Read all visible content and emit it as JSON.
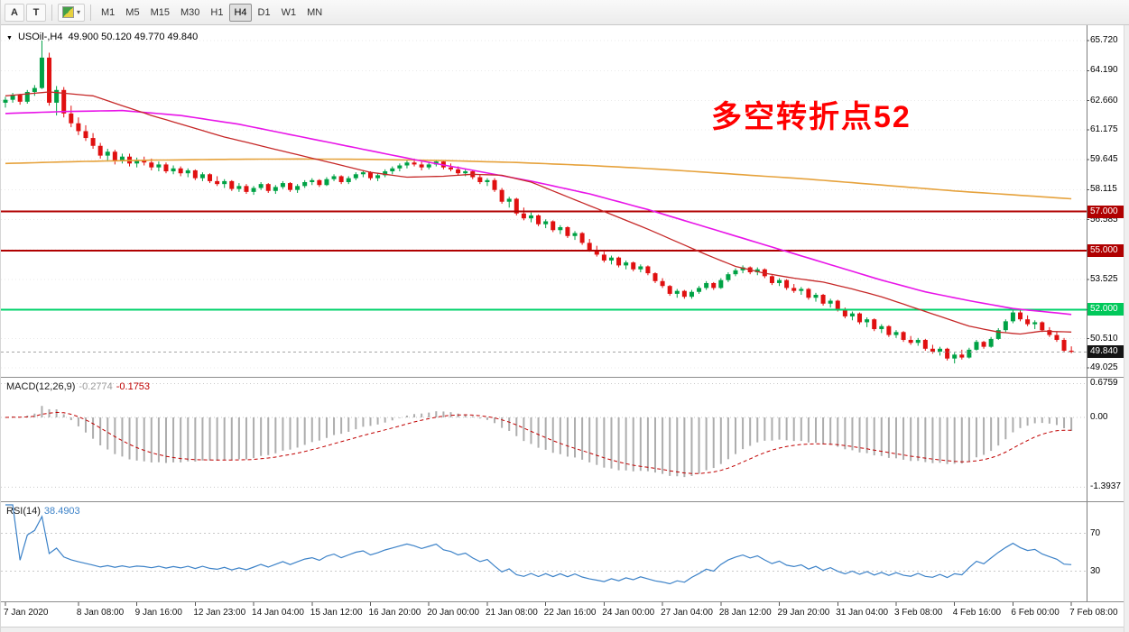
{
  "toolbar": {
    "tools": [
      {
        "label": "A"
      },
      {
        "label": "T"
      }
    ],
    "timeframes": [
      {
        "label": "M1"
      },
      {
        "label": "M5"
      },
      {
        "label": "M15"
      },
      {
        "label": "M30"
      },
      {
        "label": "H1"
      },
      {
        "label": "H4",
        "active": true
      },
      {
        "label": "D1"
      },
      {
        "label": "W1"
      },
      {
        "label": "MN"
      }
    ]
  },
  "chart": {
    "symbol_label": "USOil-,H4",
    "ohlc_text": "49.900 50.120 49.770 49.840",
    "annotation": {
      "text": "多空转折点52",
      "color": "#FF0000"
    }
  },
  "macd": {
    "label": "MACD(12,26,9)",
    "value_main": "-0.2774",
    "value_signal": "-0.1753"
  },
  "rsi": {
    "label": "RSI(14)",
    "value": "38.4903"
  },
  "chart_data": {
    "type": "candlestick",
    "symbol": "USOil-",
    "timeframe": "H4",
    "ylim": [
      49.025,
      65.72
    ],
    "colors": {
      "up": "#00A245",
      "down": "#E01010",
      "ma_fast": "#C62828",
      "ma_mid": "#E814E8",
      "ma_slow": "#E6A23C",
      "macd_hist": "#ADADAD",
      "macd_signal": "#C00000",
      "rsi_line": "#3C82C8",
      "grid": "#E9E9E9",
      "levels": "#C9C9C9",
      "axis_line": "#7D7D7D",
      "current": "#A5A5A5"
    },
    "candles": [
      [
        62.55,
        62.85,
        62.3,
        62.7
      ],
      [
        62.7,
        63.05,
        62.55,
        62.95
      ],
      [
        62.95,
        63,
        62.45,
        62.6
      ],
      [
        62.6,
        63.2,
        62.5,
        63.1
      ],
      [
        63.1,
        63.45,
        62.9,
        63.3
      ],
      [
        63.3,
        65.72,
        63.25,
        64.85
      ],
      [
        64.85,
        65.1,
        62.4,
        62.55
      ],
      [
        62.55,
        63.4,
        61.9,
        63.2
      ],
      [
        63.2,
        63.35,
        61.8,
        62
      ],
      [
        62,
        62.4,
        61.3,
        61.5
      ],
      [
        61.5,
        61.8,
        60.9,
        61.1
      ],
      [
        61.1,
        61.4,
        60.6,
        60.75
      ],
      [
        60.75,
        61,
        60.2,
        60.35
      ],
      [
        60.35,
        60.5,
        59.7,
        59.85
      ],
      [
        59.85,
        60.2,
        59.55,
        60.05
      ],
      [
        60.05,
        60.15,
        59.4,
        59.6
      ],
      [
        59.6,
        59.95,
        59.45,
        59.8
      ],
      [
        59.8,
        59.95,
        59.3,
        59.45
      ],
      [
        59.45,
        59.75,
        59.25,
        59.6
      ],
      [
        59.6,
        59.8,
        59.35,
        59.5
      ],
      [
        59.5,
        59.7,
        59.1,
        59.25
      ],
      [
        59.25,
        59.55,
        59.05,
        59.4
      ],
      [
        59.4,
        59.5,
        58.95,
        59.05
      ],
      [
        59.05,
        59.35,
        58.9,
        59.2
      ],
      [
        59.2,
        59.3,
        58.8,
        58.95
      ],
      [
        58.95,
        59.2,
        58.75,
        59.1
      ],
      [
        59.1,
        59.15,
        58.6,
        58.7
      ],
      [
        58.7,
        59,
        58.55,
        58.9
      ],
      [
        58.9,
        58.95,
        58.45,
        58.55
      ],
      [
        58.55,
        58.8,
        58.3,
        58.4
      ],
      [
        58.4,
        58.65,
        58.2,
        58.55
      ],
      [
        58.55,
        58.6,
        58.05,
        58.15
      ],
      [
        58.15,
        58.45,
        58,
        58.3
      ],
      [
        58.3,
        58.4,
        57.9,
        58
      ],
      [
        58,
        58.3,
        57.85,
        58.2
      ],
      [
        58.2,
        58.5,
        58.1,
        58.4
      ],
      [
        58.4,
        58.45,
        57.95,
        58.05
      ],
      [
        58.05,
        58.35,
        57.9,
        58.25
      ],
      [
        58.25,
        58.55,
        58.15,
        58.45
      ],
      [
        58.45,
        58.5,
        58,
        58.1
      ],
      [
        58.1,
        58.4,
        57.95,
        58.3
      ],
      [
        58.3,
        58.6,
        58.2,
        58.5
      ],
      [
        58.5,
        58.7,
        58.35,
        58.6
      ],
      [
        58.6,
        58.65,
        58.25,
        58.35
      ],
      [
        58.35,
        58.75,
        58.3,
        58.65
      ],
      [
        58.65,
        58.9,
        58.55,
        58.8
      ],
      [
        58.8,
        58.85,
        58.4,
        58.5
      ],
      [
        58.5,
        58.8,
        58.4,
        58.7
      ],
      [
        58.7,
        59,
        58.6,
        58.9
      ],
      [
        58.9,
        59.1,
        58.75,
        59
      ],
      [
        59,
        59.05,
        58.6,
        58.7
      ],
      [
        58.7,
        58.95,
        58.55,
        58.85
      ],
      [
        58.85,
        59.15,
        58.75,
        59.05
      ],
      [
        59.05,
        59.3,
        58.9,
        59.2
      ],
      [
        59.2,
        59.45,
        59.05,
        59.35
      ],
      [
        59.35,
        59.6,
        59.2,
        59.5
      ],
      [
        59.5,
        59.7,
        59.3,
        59.4
      ],
      [
        59.4,
        59.55,
        59.1,
        59.25
      ],
      [
        59.25,
        59.5,
        59.15,
        59.4
      ],
      [
        59.4,
        59.65,
        59.3,
        59.55
      ],
      [
        59.55,
        59.6,
        59.15,
        59.25
      ],
      [
        59.25,
        59.45,
        59.05,
        59.15
      ],
      [
        59.15,
        59.3,
        58.85,
        58.95
      ],
      [
        58.95,
        59.15,
        58.8,
        59.05
      ],
      [
        59.05,
        59.1,
        58.65,
        58.75
      ],
      [
        58.75,
        58.9,
        58.4,
        58.5
      ],
      [
        58.5,
        58.7,
        58.3,
        58.6
      ],
      [
        58.6,
        58.7,
        58,
        58.1
      ],
      [
        58.1,
        58.2,
        57.4,
        57.5
      ],
      [
        57.5,
        57.75,
        57.2,
        57.65
      ],
      [
        57.65,
        57.7,
        56.8,
        56.9
      ],
      [
        56.9,
        57.2,
        56.55,
        56.65
      ],
      [
        56.65,
        56.95,
        56.45,
        56.8
      ],
      [
        56.8,
        56.85,
        56.25,
        56.35
      ],
      [
        56.35,
        56.6,
        56.15,
        56.5
      ],
      [
        56.5,
        56.55,
        55.95,
        56.05
      ],
      [
        56.05,
        56.3,
        55.85,
        56.2
      ],
      [
        56.2,
        56.25,
        55.65,
        55.75
      ],
      [
        55.75,
        56,
        55.55,
        55.9
      ],
      [
        55.9,
        55.95,
        55.3,
        55.4
      ],
      [
        55.4,
        55.6,
        54.95,
        55.05
      ],
      [
        55.05,
        55.25,
        54.7,
        54.8
      ],
      [
        54.8,
        54.95,
        54.4,
        54.5
      ],
      [
        54.5,
        54.75,
        54.3,
        54.65
      ],
      [
        54.65,
        54.7,
        54.15,
        54.25
      ],
      [
        54.25,
        54.5,
        54.05,
        54.4
      ],
      [
        54.4,
        54.45,
        53.95,
        54.05
      ],
      [
        54.05,
        54.3,
        53.9,
        54.2
      ],
      [
        54.2,
        54.25,
        53.75,
        53.85
      ],
      [
        53.85,
        53.9,
        53.35,
        53.45
      ],
      [
        53.45,
        53.6,
        53.1,
        53.2
      ],
      [
        53.2,
        53.25,
        52.7,
        52.8
      ],
      [
        52.8,
        53.05,
        52.6,
        52.95
      ],
      [
        52.95,
        53,
        52.55,
        52.65
      ],
      [
        52.65,
        53,
        52.55,
        52.9
      ],
      [
        52.9,
        53.2,
        52.8,
        53.1
      ],
      [
        53.1,
        53.45,
        53,
        53.35
      ],
      [
        53.35,
        53.4,
        53,
        53.1
      ],
      [
        53.1,
        53.6,
        53.05,
        53.5
      ],
      [
        53.5,
        53.9,
        53.4,
        53.8
      ],
      [
        53.8,
        54.1,
        53.7,
        54
      ],
      [
        54,
        54.25,
        53.85,
        54.15
      ],
      [
        54.15,
        54.2,
        53.8,
        53.9
      ],
      [
        53.9,
        54.15,
        53.75,
        54.05
      ],
      [
        54.05,
        54.1,
        53.6,
        53.7
      ],
      [
        53.7,
        53.75,
        53.25,
        53.35
      ],
      [
        53.35,
        53.6,
        53.2,
        53.5
      ],
      [
        53.5,
        53.55,
        53,
        53.1
      ],
      [
        53.1,
        53.3,
        52.85,
        52.95
      ],
      [
        52.95,
        53.15,
        52.75,
        53.05
      ],
      [
        53.05,
        53.1,
        52.5,
        52.6
      ],
      [
        52.6,
        52.85,
        52.4,
        52.75
      ],
      [
        52.75,
        52.8,
        52.2,
        52.3
      ],
      [
        52.3,
        52.55,
        52.1,
        52.45
      ],
      [
        52.45,
        52.5,
        51.9,
        52
      ],
      [
        52,
        52.1,
        51.55,
        51.65
      ],
      [
        51.65,
        51.9,
        51.45,
        51.8
      ],
      [
        51.8,
        51.85,
        51.25,
        51.35
      ],
      [
        51.35,
        51.6,
        51.1,
        51.5
      ],
      [
        51.5,
        51.55,
        50.9,
        51
      ],
      [
        51,
        51.25,
        50.8,
        51.15
      ],
      [
        51.15,
        51.2,
        50.6,
        50.7
      ],
      [
        50.7,
        50.95,
        50.55,
        50.85
      ],
      [
        50.85,
        50.9,
        50.35,
        50.45
      ],
      [
        50.45,
        50.65,
        50.2,
        50.3
      ],
      [
        50.3,
        50.55,
        50.15,
        50.45
      ],
      [
        50.45,
        50.5,
        49.9,
        50
      ],
      [
        50,
        50.2,
        49.75,
        49.85
      ],
      [
        49.85,
        50.1,
        49.65,
        50
      ],
      [
        50,
        50.05,
        49.4,
        49.5
      ],
      [
        49.5,
        49.8,
        49.25,
        49.7
      ],
      [
        49.7,
        49.95,
        49.45,
        49.55
      ],
      [
        49.55,
        50.05,
        49.5,
        49.95
      ],
      [
        49.95,
        50.45,
        49.9,
        50.35
      ],
      [
        50.35,
        50.4,
        50,
        50.1
      ],
      [
        50.1,
        50.6,
        50.05,
        50.5
      ],
      [
        50.5,
        51.05,
        50.45,
        50.95
      ],
      [
        50.95,
        51.5,
        50.85,
        51.4
      ],
      [
        51.4,
        51.95,
        51.3,
        51.85
      ],
      [
        51.85,
        52,
        51.4,
        51.5
      ],
      [
        51.5,
        51.7,
        51.15,
        51.25
      ],
      [
        51.25,
        51.45,
        51,
        51.35
      ],
      [
        51.35,
        51.4,
        50.85,
        50.95
      ],
      [
        50.95,
        51.1,
        50.6,
        50.7
      ],
      [
        50.7,
        50.85,
        50.35,
        50.45
      ],
      [
        50.45,
        50.55,
        49.85,
        49.9
      ],
      [
        49.9,
        50.12,
        49.77,
        49.84
      ]
    ],
    "ma_fast_points": [
      [
        0,
        62.9
      ],
      [
        6,
        63.1
      ],
      [
        12,
        62.9
      ],
      [
        20,
        61.9
      ],
      [
        30,
        60.8
      ],
      [
        40,
        59.9
      ],
      [
        50,
        59.0
      ],
      [
        55,
        58.75
      ],
      [
        60,
        58.8
      ],
      [
        64,
        58.9
      ],
      [
        68,
        58.85
      ],
      [
        72,
        58.5
      ],
      [
        76,
        57.9
      ],
      [
        80,
        57.3
      ],
      [
        84,
        56.7
      ],
      [
        88,
        56.1
      ],
      [
        92,
        55.45
      ],
      [
        96,
        54.8
      ],
      [
        100,
        54.2
      ],
      [
        104,
        53.85
      ],
      [
        108,
        53.6
      ],
      [
        112,
        53.4
      ],
      [
        116,
        53.05
      ],
      [
        120,
        52.65
      ],
      [
        124,
        52.15
      ],
      [
        128,
        51.65
      ],
      [
        132,
        51.15
      ],
      [
        136,
        50.85
      ],
      [
        139,
        50.75
      ],
      [
        142,
        50.9
      ],
      [
        146,
        50.85
      ]
    ],
    "ma_mid_points": [
      [
        0,
        62.0
      ],
      [
        8,
        62.1
      ],
      [
        16,
        62.15
      ],
      [
        24,
        61.9
      ],
      [
        32,
        61.45
      ],
      [
        40,
        60.85
      ],
      [
        48,
        60.25
      ],
      [
        56,
        59.65
      ],
      [
        64,
        59.1
      ],
      [
        72,
        58.55
      ],
      [
        80,
        57.9
      ],
      [
        88,
        57.1
      ],
      [
        96,
        56.2
      ],
      [
        104,
        55.3
      ],
      [
        112,
        54.4
      ],
      [
        120,
        53.5
      ],
      [
        126,
        52.9
      ],
      [
        132,
        52.45
      ],
      [
        138,
        52.05
      ],
      [
        142,
        51.9
      ],
      [
        146,
        51.75
      ]
    ],
    "ma_slow_points": [
      [
        0,
        59.45
      ],
      [
        10,
        59.55
      ],
      [
        20,
        59.62
      ],
      [
        30,
        59.66
      ],
      [
        40,
        59.68
      ],
      [
        50,
        59.66
      ],
      [
        60,
        59.6
      ],
      [
        70,
        59.5
      ],
      [
        80,
        59.35
      ],
      [
        90,
        59.15
      ],
      [
        100,
        58.9
      ],
      [
        110,
        58.65
      ],
      [
        120,
        58.35
      ],
      [
        130,
        58.05
      ],
      [
        138,
        57.85
      ],
      [
        146,
        57.65
      ]
    ],
    "hlines": [
      {
        "price": 57.0,
        "color": "#B00000"
      },
      {
        "price": 55.0,
        "color": "#B00000"
      },
      {
        "price": 52.0,
        "color": "#00D26A"
      }
    ],
    "current_price": 49.84,
    "price_ticks": [
      {
        "label": "65.720",
        "value": 65.72
      },
      {
        "label": "64.190",
        "value": 64.19
      },
      {
        "label": "62.660",
        "value": 62.66
      },
      {
        "label": "61.175",
        "value": 61.175
      },
      {
        "label": "59.645",
        "value": 59.645
      },
      {
        "label": "58.115",
        "value": 58.115
      },
      {
        "label": "56.585",
        "value": 56.585
      },
      {
        "label": "55.055",
        "value": 55.055
      },
      {
        "label": "53.525",
        "value": 53.525
      },
      {
        "label": "51.995",
        "value": 51.995
      },
      {
        "label": "50.510",
        "value": 50.51
      },
      {
        "label": "49.025",
        "value": 49.025
      }
    ],
    "badges": [
      {
        "label": "57.000",
        "price": 57.0,
        "bg": "#B00000",
        "fg": "#FFFFFF"
      },
      {
        "label": "55.000",
        "price": 55.0,
        "bg": "#B00000",
        "fg": "#FFFFFF"
      },
      {
        "label": "52.000",
        "price": 52.0,
        "bg": "#00C85A",
        "fg": "#FFFFFF"
      },
      {
        "label": "49.840",
        "price": 49.84,
        "bg": "#141414",
        "fg": "#FFFFFF"
      }
    ],
    "macd": {
      "fast": 12,
      "slow": 26,
      "signal": 9,
      "axis": [
        {
          "label": "0.6759",
          "value": 0.6759
        },
        {
          "label": "0.00",
          "value": 0
        },
        {
          "label": "-1.3937",
          "value": -1.3937
        }
      ]
    },
    "rsi": {
      "period": 14,
      "levels": [
        {
          "label": "70",
          "value": 70
        },
        {
          "label": "30",
          "value": 30
        }
      ]
    },
    "time_labels": [
      {
        "label": "7 Jan 2020",
        "index": 0
      },
      {
        "label": "8 Jan 08:00",
        "index": 10
      },
      {
        "label": "9 Jan 16:00",
        "index": 18
      },
      {
        "label": "12 Jan 23:00",
        "index": 26
      },
      {
        "label": "14 Jan 04:00",
        "index": 34
      },
      {
        "label": "15 Jan 12:00",
        "index": 42
      },
      {
        "label": "16 Jan 20:00",
        "index": 50
      },
      {
        "label": "20 Jan 00:00",
        "index": 58
      },
      {
        "label": "21 Jan 08:00",
        "index": 66
      },
      {
        "label": "22 Jan 16:00",
        "index": 74
      },
      {
        "label": "24 Jan 00:00",
        "index": 82
      },
      {
        "label": "27 Jan 04:00",
        "index": 90
      },
      {
        "label": "28 Jan 12:00",
        "index": 98
      },
      {
        "label": "29 Jan 20:00",
        "index": 106
      },
      {
        "label": "31 Jan 04:00",
        "index": 114
      },
      {
        "label": "3 Feb 08:00",
        "index": 122
      },
      {
        "label": "4 Feb 16:00",
        "index": 130
      },
      {
        "label": "6 Feb 00:00",
        "index": 138
      },
      {
        "label": "7 Feb 08:00",
        "index": 146
      }
    ]
  }
}
